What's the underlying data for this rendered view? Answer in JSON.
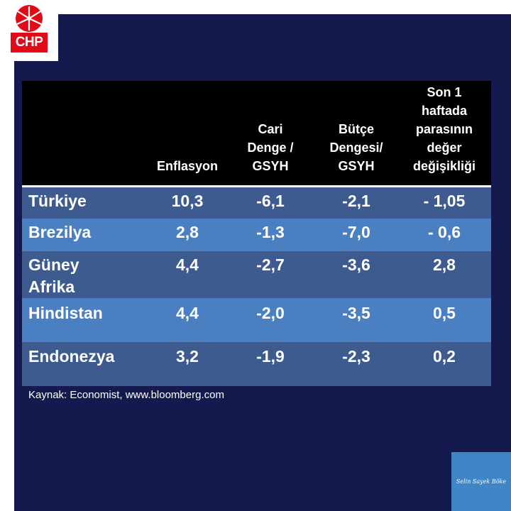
{
  "logo": {
    "text": "CHP"
  },
  "table": {
    "headers": [
      "Enflasyon",
      "Cari\nDenge /\nGSYH",
      "Bütçe\nDengesi/\nGSYH",
      "Son 1\nhaftada\nparasının\ndeğer\ndeğişikliği"
    ],
    "rows": [
      {
        "country": "Türkiye",
        "values": [
          "10,3",
          "-6,1",
          "-2,1",
          "- 1,05"
        ]
      },
      {
        "country": "Brezilya",
        "values": [
          "2,8",
          "-1,3",
          "-7,0",
          "- 0,6"
        ]
      },
      {
        "country": "Güney\nAfrika",
        "values": [
          "4,4",
          "-2,7",
          "-3,6",
          "2,8"
        ]
      },
      {
        "country": "Hindistan",
        "values": [
          "4,4",
          "-2,0",
          "-3,5",
          "0,5"
        ]
      },
      {
        "country": "Endonezya",
        "values": [
          "3,2",
          "-1,9",
          "-2,3",
          "0,2"
        ]
      }
    ]
  },
  "source": "Kaynak: Economist, www.bloomberg.com",
  "signature": "Selin Sayek Böke"
}
